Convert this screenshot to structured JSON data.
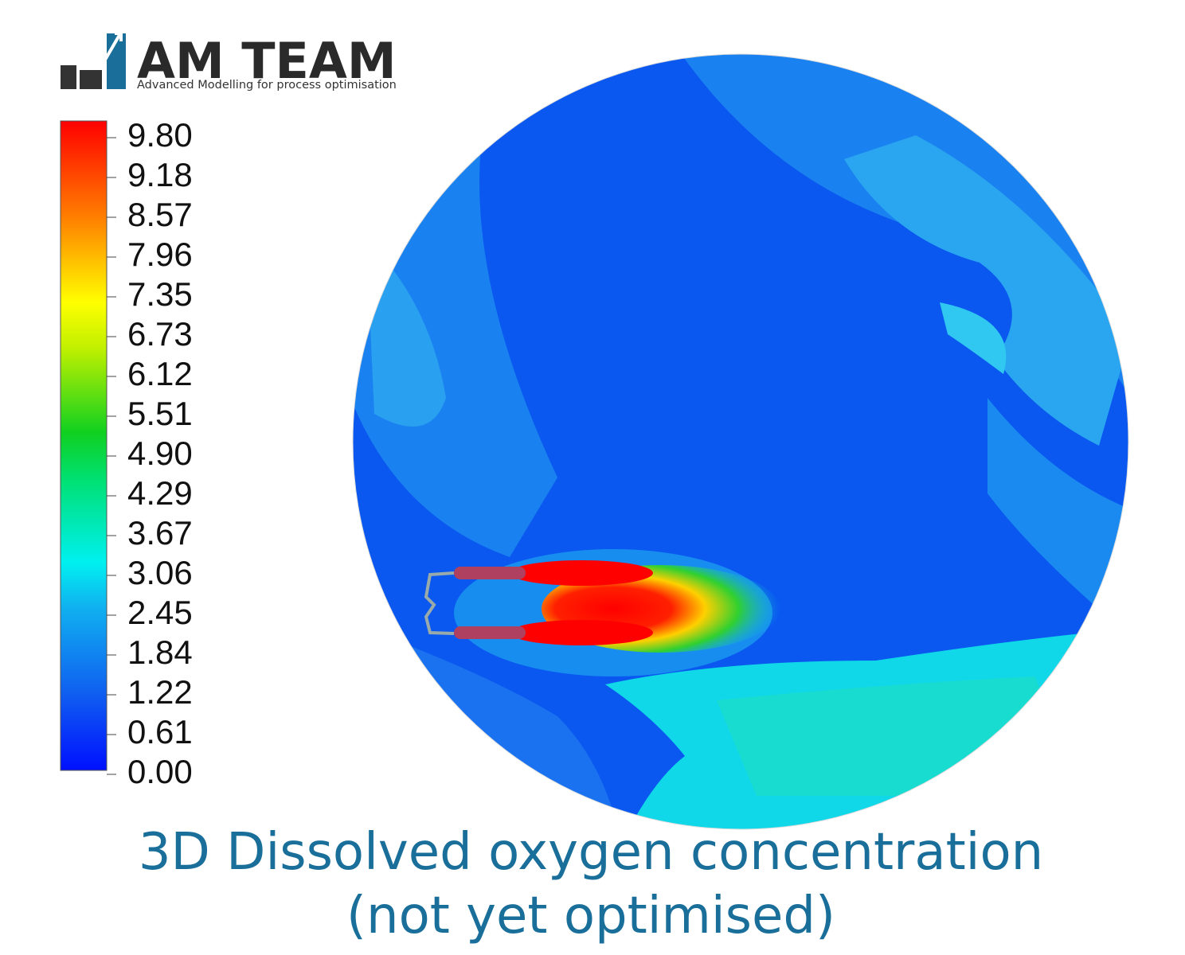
{
  "logo": {
    "name": "AM TEAM",
    "tagline": "Advanced Modelling for process optimisation"
  },
  "legend": {
    "ticks": [
      "9.80",
      "9.18",
      "8.57",
      "7.96",
      "7.35",
      "6.73",
      "6.12",
      "5.51",
      "4.90",
      "4.29",
      "3.67",
      "3.06",
      "2.45",
      "1.84",
      "1.22",
      "0.61",
      "0.00"
    ]
  },
  "caption": {
    "line1": "3D Dissolved oxygen concentration",
    "line2": "(not yet optimised)"
  }
}
